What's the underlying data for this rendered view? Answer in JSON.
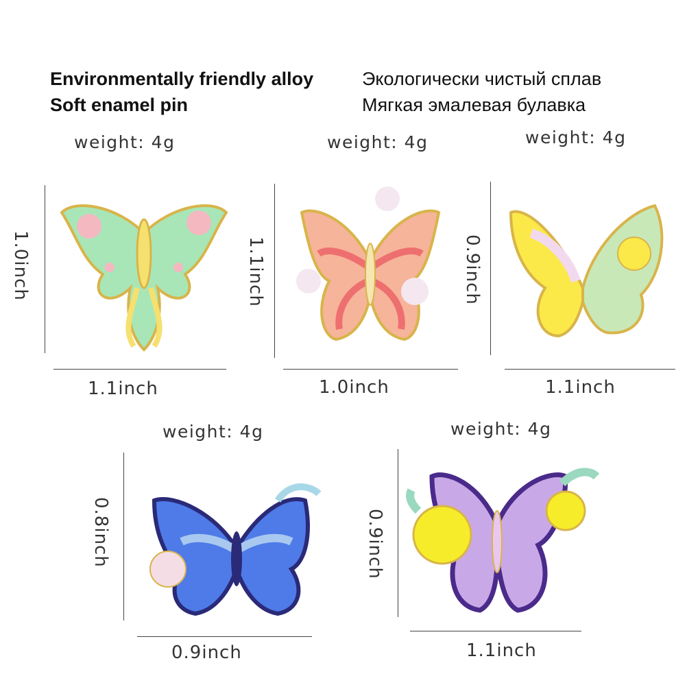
{
  "header": {
    "en_line1": "Environmentally friendly alloy",
    "en_line2": "Soft enamel pin",
    "ru_line1": "Экологически чистый сплав",
    "ru_line2": "Мягкая эмалевая булавка"
  },
  "pins": [
    {
      "weight": "weight: 4g",
      "height": "1.0inch",
      "width": "1.1inch",
      "colors": [
        "#a8e6b8",
        "#f5e070",
        "#f4b8c0"
      ]
    },
    {
      "weight": "weight: 4g",
      "height": "1.1inch",
      "width": "1.0inch",
      "colors": [
        "#f6b49a",
        "#ee6f6f",
        "#f4e7f0"
      ]
    },
    {
      "weight": "weight: 4g",
      "height": "0.9inch",
      "width": "1.1inch",
      "colors": [
        "#fbe94a",
        "#c9e8b8",
        "#f3d9ee"
      ]
    },
    {
      "weight": "weight: 4g",
      "height": "0.8inch",
      "width": "0.9inch",
      "colors": [
        "#4f7be8",
        "#2a2a78",
        "#f5dde6"
      ]
    },
    {
      "weight": "weight: 4g",
      "height": "0.9inch",
      "width": "1.1inch",
      "colors": [
        "#c9a8e8",
        "#4a2a8a",
        "#f7ec2a"
      ]
    }
  ]
}
